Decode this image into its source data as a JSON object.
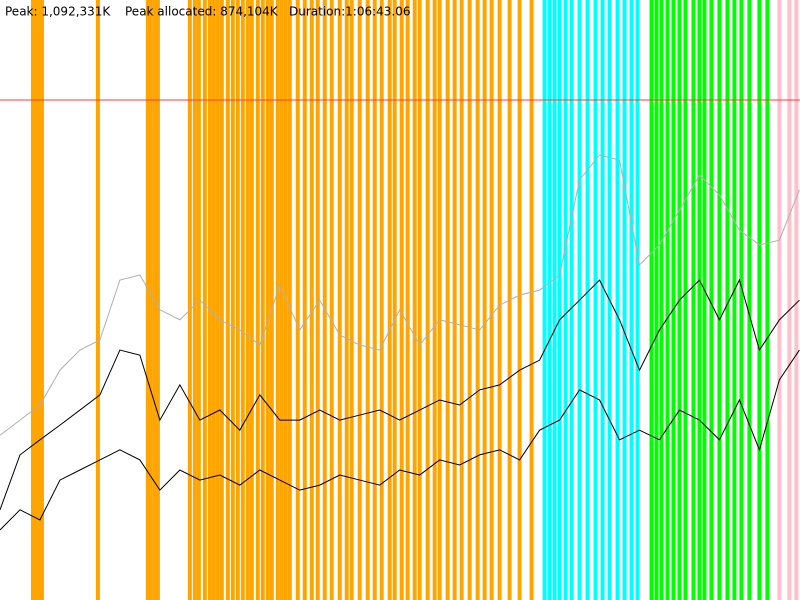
{
  "chart_data": {
    "type": "line",
    "peak_line": {
      "value": 1092331,
      "label": "Peak: 1,092,331K",
      "color": "#ff3b3b"
    },
    "peak_allocated": "Peak allocated: 874,104K",
    "duration": "Duration:1:06:43.06",
    "xlim": [
      0,
      4003.06
    ],
    "ylim": [
      0,
      1310797
    ],
    "x": [
      0,
      100,
      200,
      300,
      400,
      500,
      600,
      700,
      800,
      900,
      1000,
      1100,
      1200,
      1300,
      1400,
      1500,
      1600,
      1700,
      1800,
      1900,
      2000,
      2100,
      2200,
      2300,
      2400,
      2500,
      2600,
      2700,
      2800,
      2900,
      3000,
      3100,
      3200,
      3300,
      3400,
      3500,
      3600,
      3700,
      3800,
      3900,
      4000
    ],
    "series": [
      {
        "color": "#b0b0b0",
        "values": [
          360000,
          393000,
          426000,
          502000,
          546000,
          568000,
          699000,
          710000,
          634000,
          612000,
          655000,
          612000,
          590000,
          557000,
          688000,
          590000,
          655000,
          579000,
          557000,
          546000,
          634000,
          557000,
          612000,
          601000,
          590000,
          644000,
          666000,
          677000,
          710000,
          918000,
          972000,
          961000,
          732000,
          776000,
          852000,
          928000,
          885000,
          808000,
          776000,
          786000,
          896000
        ]
      },
      {
        "color": "#000000",
        "values": [
          197000,
          317000,
          350000,
          382000,
          415000,
          448000,
          546000,
          535000,
          393000,
          470000,
          393000,
          415000,
          371000,
          448000,
          393000,
          393000,
          415000,
          393000,
          404000,
          415000,
          393000,
          415000,
          437000,
          426000,
          459000,
          470000,
          502000,
          524000,
          612000,
          655000,
          699000,
          612000,
          502000,
          590000,
          655000,
          699000,
          612000,
          699000,
          546000,
          612000,
          655000
        ]
      },
      {
        "color": "#000000",
        "values": [
          153000,
          197000,
          175000,
          262000,
          284000,
          306000,
          328000,
          306000,
          240000,
          284000,
          262000,
          273000,
          251000,
          284000,
          262000,
          240000,
          251000,
          273000,
          262000,
          251000,
          284000,
          273000,
          306000,
          295000,
          317000,
          328000,
          306000,
          371000,
          393000,
          459000,
          437000,
          350000,
          371000,
          350000,
          415000,
          393000,
          350000,
          437000,
          328000,
          481000,
          546000
        ]
      }
    ],
    "gc_events": [
      {
        "color": "#ffa500",
        "x": [
          165,
          180,
          195,
          210,
          490,
          740,
          755,
          775,
          790,
          950,
          975,
          995,
          1025,
          1050,
          1070,
          1090,
          1110,
          1140,
          1165,
          1190,
          1215,
          1240,
          1260,
          1290,
          1315,
          1340,
          1360,
          1390,
          1410,
          1430,
          1450,
          1490,
          1525,
          1560,
          1590,
          1625,
          1660,
          1700,
          1735,
          1760,
          1800,
          1840,
          1875,
          1910,
          1950,
          1975,
          2010,
          2040,
          2075,
          2100,
          2140,
          2175,
          2200,
          2240,
          2275,
          2310,
          2350,
          2390,
          2425,
          2460,
          2500,
          2550,
          2600,
          2660
        ]
      },
      {
        "color": "#00ffff",
        "x": [
          2725,
          2750,
          2775,
          2800,
          2830,
          2860,
          2900,
          2940,
          2980,
          3015,
          3050,
          3090,
          3125,
          3160,
          3190
        ]
      },
      {
        "color": "#00ff00",
        "x": [
          3260,
          3285,
          3310,
          3340,
          3370,
          3400,
          3430,
          3470,
          3500,
          3525,
          3560,
          3600,
          3640,
          3675,
          3710,
          3750,
          3800,
          3840
        ]
      },
      {
        "color": "#ffc0cb",
        "x": [
          3900,
          3950,
          3985
        ]
      }
    ]
  }
}
